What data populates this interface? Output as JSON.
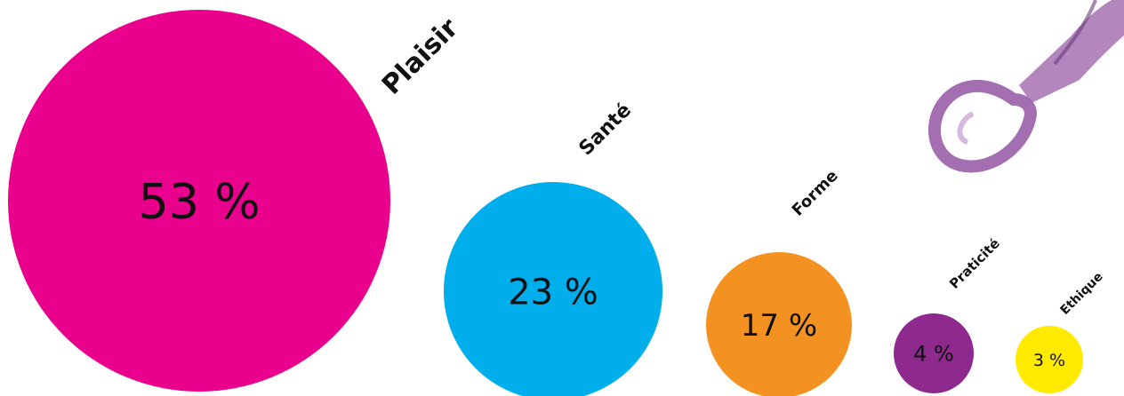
{
  "chart_data": {
    "type": "bubble",
    "series": [
      {
        "category": "Plaisir",
        "value": 53,
        "label": "53 %",
        "color": "#E9008C"
      },
      {
        "category": "Santé",
        "value": 23,
        "label": "23 %",
        "color": "#00AEEB"
      },
      {
        "category": "Forme",
        "value": 17,
        "label": "17 %",
        "color": "#F39220"
      },
      {
        "category": "Praticité",
        "value": 4,
        "label": "4 %",
        "color": "#8E2A8E"
      },
      {
        "category": "Ethique",
        "value": 3,
        "label": "3 %",
        "color": "#FFEA00"
      }
    ],
    "unit": "%"
  },
  "decoration": {
    "icon": "ice-cream-scoop-icon",
    "color": "#9A5FA8"
  }
}
